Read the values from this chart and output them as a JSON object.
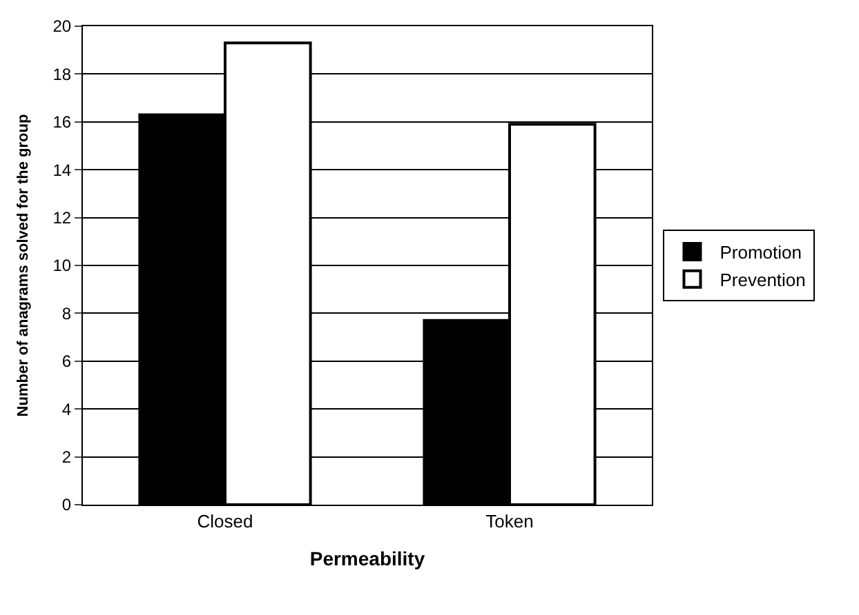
{
  "chart_data": {
    "type": "bar",
    "xlabel": "Permeability",
    "ylabel": "Number of anagrams solved for the group",
    "categories": [
      "Closed",
      "Token"
    ],
    "series": [
      {
        "name": "Promotion",
        "color": "#000000",
        "values": [
          16.3,
          7.7
        ]
      },
      {
        "name": "Prevention",
        "color": "#ffffff",
        "values": [
          19.3,
          15.9
        ]
      }
    ],
    "ylim": [
      0,
      20
    ],
    "yticks": [
      0,
      2,
      4,
      6,
      8,
      10,
      12,
      14,
      16,
      18,
      20
    ],
    "grid": "y",
    "legend": "right"
  }
}
